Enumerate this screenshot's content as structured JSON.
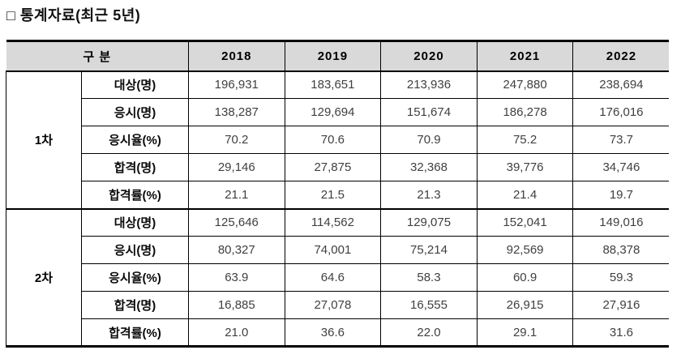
{
  "title": "□ 통계자료(최근 5년)",
  "colors": {
    "header_bg": "#d9d9d9",
    "border": "#000000",
    "value_text": "#404040"
  },
  "table": {
    "corner_header": "구 분",
    "years": [
      "2018",
      "2019",
      "2020",
      "2021",
      "2022"
    ],
    "row_labels": [
      "대상(명)",
      "응시(명)",
      "응시율(%)",
      "합격(명)",
      "합격률(%)"
    ],
    "sections": [
      {
        "group": "1차",
        "rows": [
          [
            "196,931",
            "183,651",
            "213,936",
            "247,880",
            "238,694"
          ],
          [
            "138,287",
            "129,694",
            "151,674",
            "186,278",
            "176,016"
          ],
          [
            "70.2",
            "70.6",
            "70.9",
            "75.2",
            "73.7"
          ],
          [
            "29,146",
            "27,875",
            "32,368",
            "39,776",
            "34,746"
          ],
          [
            "21.1",
            "21.5",
            "21.3",
            "21.4",
            "19.7"
          ]
        ]
      },
      {
        "group": "2차",
        "rows": [
          [
            "125,646",
            "114,562",
            "129,075",
            "152,041",
            "149,016"
          ],
          [
            "80,327",
            "74,001",
            "75,214",
            "92,569",
            "88,378"
          ],
          [
            "63.9",
            "64.6",
            "58.3",
            "60.9",
            "59.3"
          ],
          [
            "16,885",
            "27,078",
            "16,555",
            "26,915",
            "27,916"
          ],
          [
            "21.0",
            "36.6",
            "22.0",
            "29.1",
            "31.6"
          ]
        ]
      }
    ]
  }
}
